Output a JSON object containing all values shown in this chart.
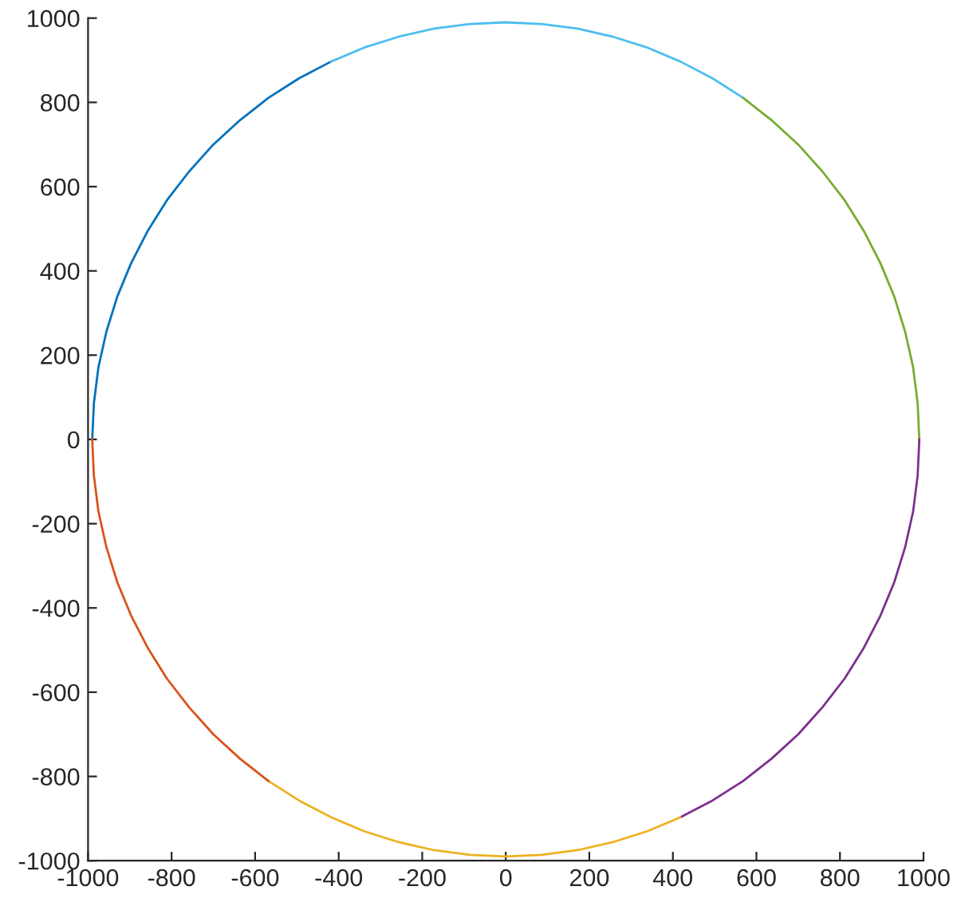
{
  "chart_data": {
    "type": "line",
    "xlim": [
      -1000,
      1000
    ],
    "ylim": [
      -1000,
      1000
    ],
    "xticks": [
      -1000,
      -800,
      -600,
      -400,
      -200,
      0,
      200,
      400,
      600,
      800,
      1000
    ],
    "yticks": [
      -1000,
      -800,
      -600,
      -400,
      -200,
      0,
      200,
      400,
      600,
      800,
      1000
    ],
    "grid": false,
    "marker": "none",
    "line_style": "solid",
    "series": [
      {
        "color": "#0072bd",
        "x": [
          -990,
          -986,
          -975,
          -956,
          -930,
          -897,
          -857,
          -811,
          -758,
          -700,
          -636,
          -568,
          -495,
          -418
        ],
        "values": [
          0,
          86,
          172,
          256,
          339,
          418,
          495,
          568,
          636,
          700,
          758,
          811,
          857,
          897
        ]
      },
      {
        "color": "#4dbeee",
        "x": [
          -418,
          -339,
          -256,
          -172,
          -86,
          0,
          86,
          172,
          256,
          339,
          418,
          495,
          568
        ],
        "values": [
          897,
          930,
          956,
          975,
          986,
          990,
          986,
          975,
          956,
          930,
          897,
          857,
          811
        ]
      },
      {
        "color": "#77ac30",
        "x": [
          568,
          636,
          700,
          758,
          811,
          857,
          897,
          930,
          956,
          975,
          986,
          990
        ],
        "values": [
          811,
          758,
          700,
          636,
          568,
          495,
          418,
          339,
          256,
          172,
          86,
          0
        ]
      },
      {
        "color": "#7e2f8e",
        "x": [
          990,
          986,
          975,
          956,
          930,
          897,
          857,
          811,
          758,
          700,
          636,
          568,
          495,
          418
        ],
        "values": [
          0,
          -86,
          -172,
          -256,
          -339,
          -418,
          -495,
          -568,
          -636,
          -700,
          -758,
          -811,
          -857,
          -897
        ]
      },
      {
        "color": "#edb120",
        "x": [
          418,
          339,
          256,
          172,
          86,
          0,
          -86,
          -172,
          -256,
          -339,
          -418,
          -495,
          -568
        ],
        "values": [
          -897,
          -930,
          -956,
          -975,
          -986,
          -990,
          -986,
          -975,
          -956,
          -930,
          -897,
          -857,
          -811
        ]
      },
      {
        "color": "#d95319",
        "x": [
          -568,
          -636,
          -700,
          -758,
          -811,
          -857,
          -897,
          -930,
          -956,
          -975,
          -986,
          -990
        ],
        "values": [
          -811,
          -758,
          -700,
          -636,
          -568,
          -495,
          -418,
          -339,
          -256,
          -172,
          -86,
          0
        ]
      }
    ]
  }
}
